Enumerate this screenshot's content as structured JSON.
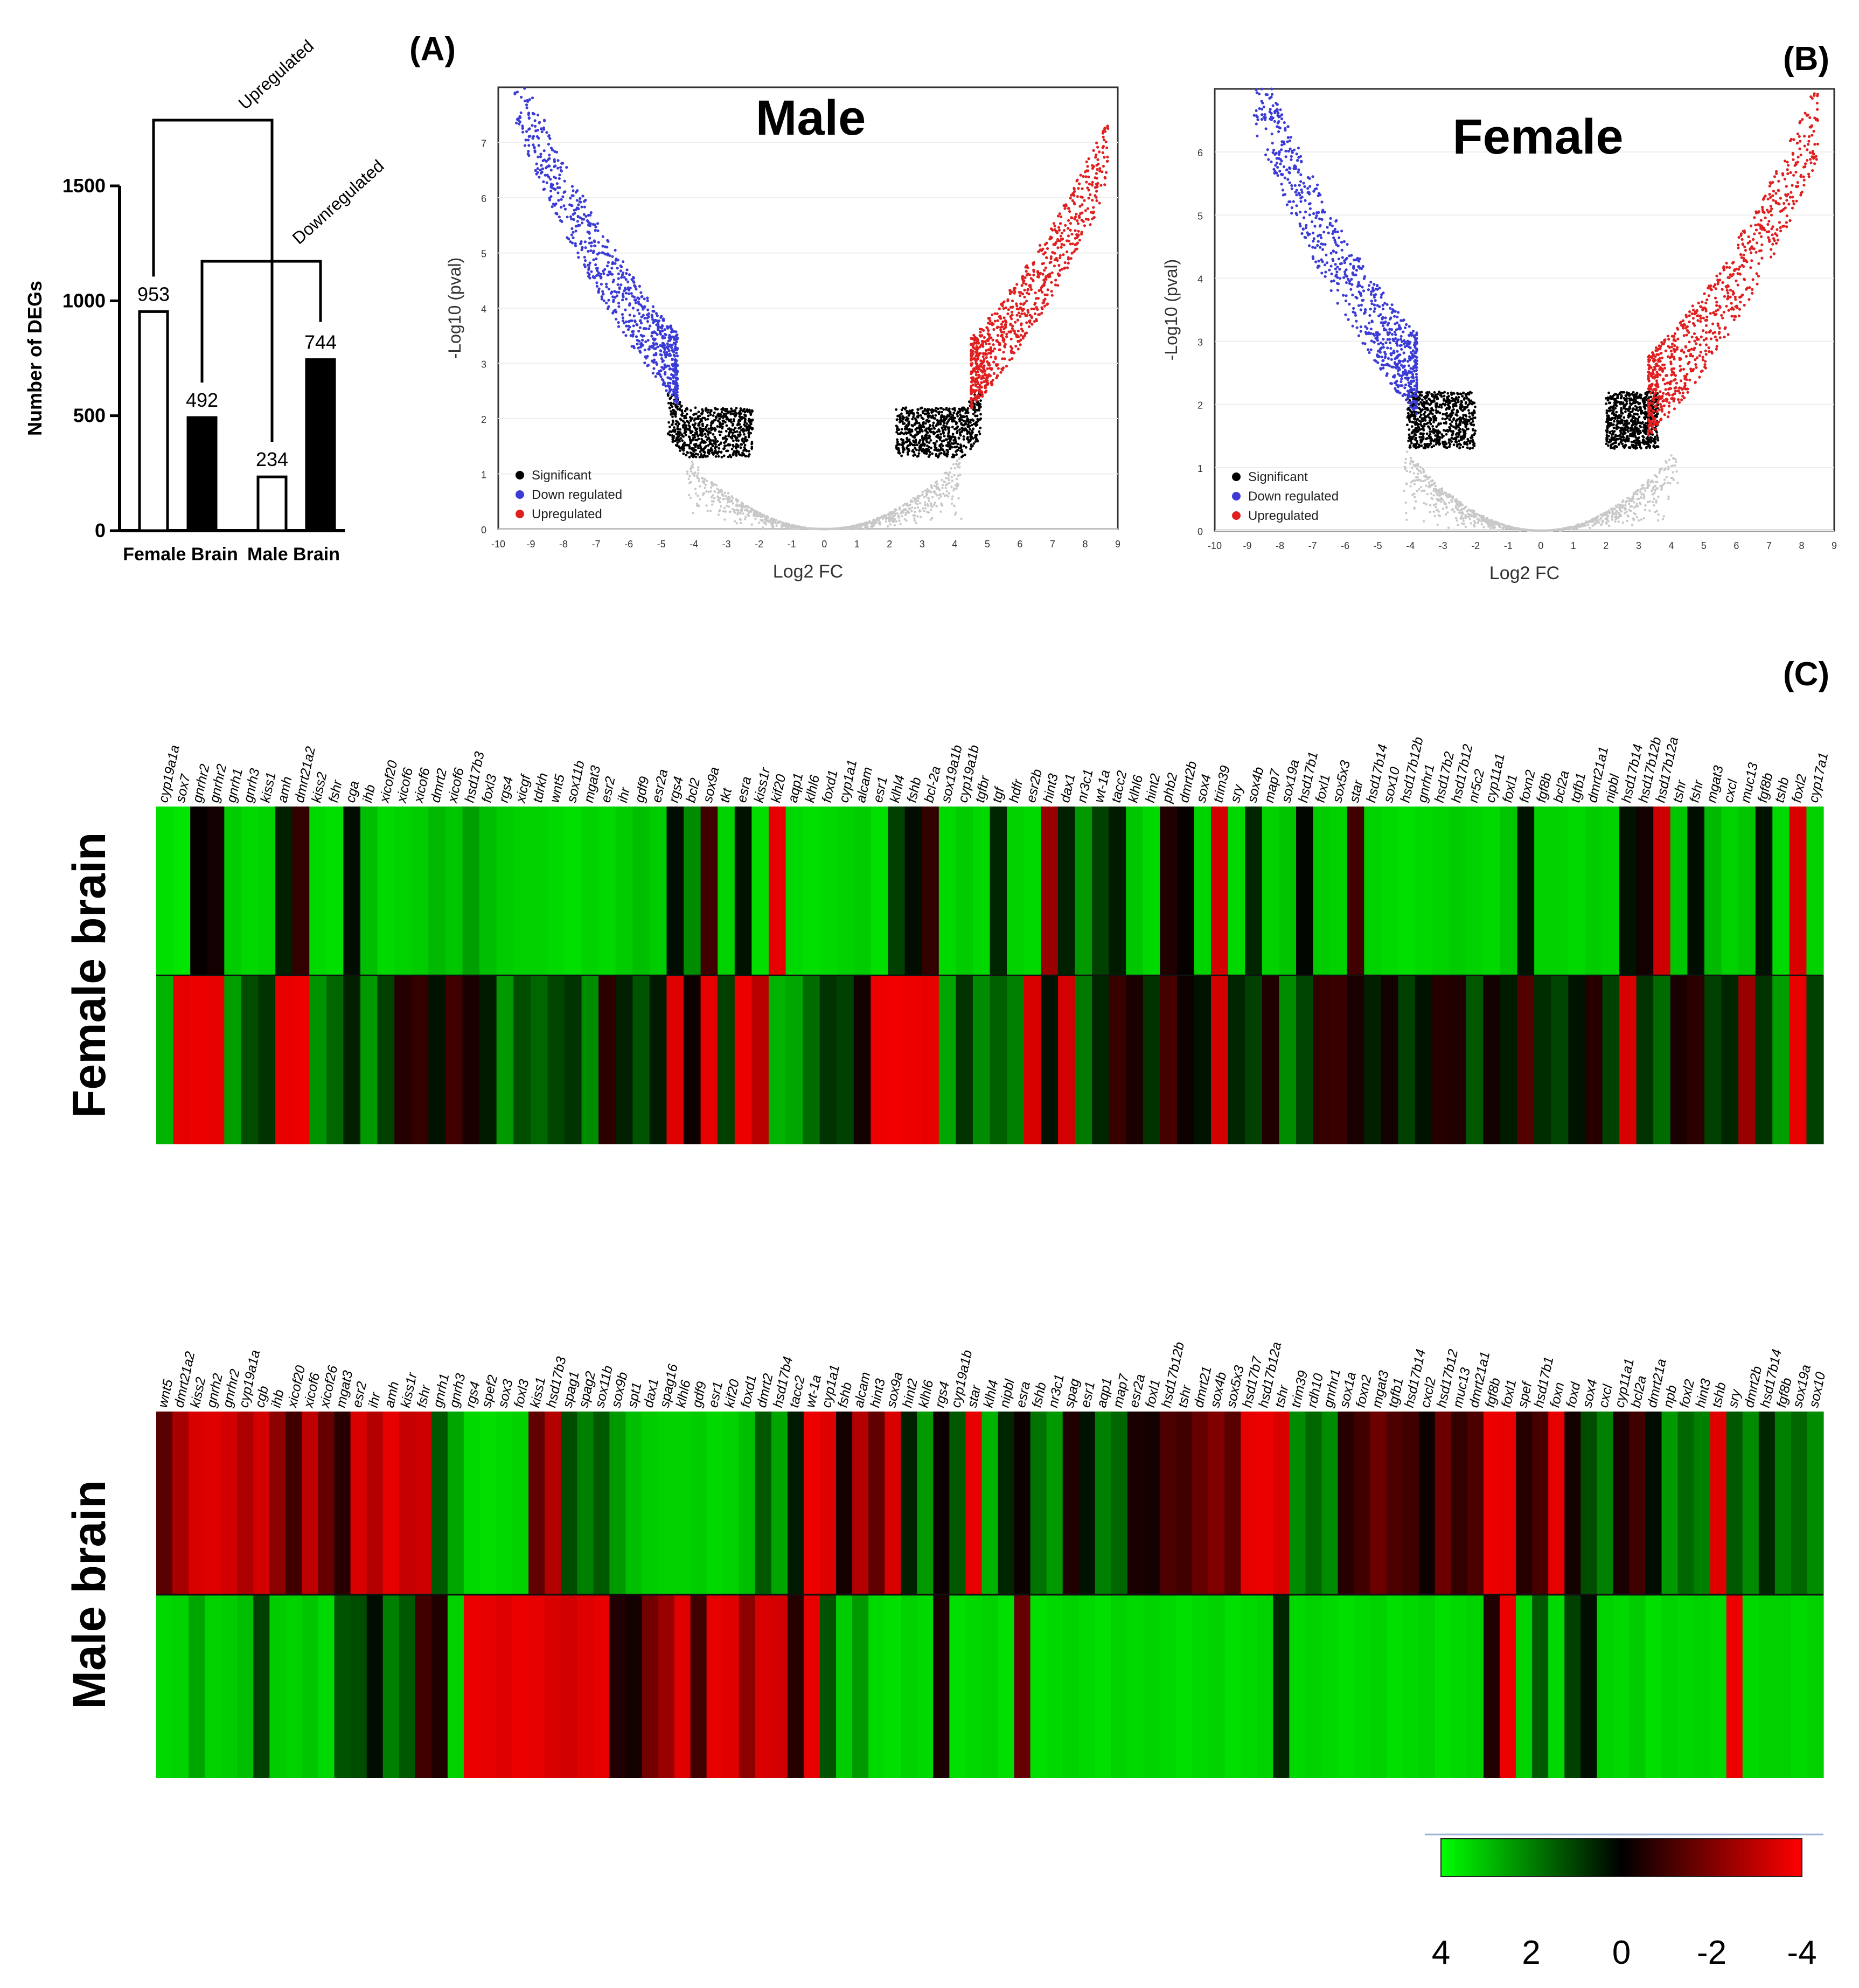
{
  "panel_labels": {
    "a": "(A)",
    "b": "(B)",
    "c": "(C)"
  },
  "chart_data": [
    {
      "type": "bar",
      "id": "deg-bar",
      "ylabel": "Number of DEGs",
      "ylim": [
        0,
        1500
      ],
      "yticks": [
        0,
        500,
        1000,
        1500
      ],
      "categories": [
        "Female Brain",
        "Male Brain"
      ],
      "bars": [
        {
          "group": "Female Brain",
          "kind": "Upregulated",
          "value": 953,
          "fill": "#ffffff"
        },
        {
          "group": "Female Brain",
          "kind": "Downregulated",
          "value": 492,
          "fill": "#000000"
        },
        {
          "group": "Male Brain",
          "kind": "Upregulated",
          "value": 234,
          "fill": "#ffffff"
        },
        {
          "group": "Male Brain",
          "kind": "Downregulated",
          "value": 744,
          "fill": "#000000"
        }
      ],
      "bracket_labels": [
        "Upregulated",
        "Downregulated"
      ]
    },
    {
      "type": "scatter",
      "id": "volcano-male",
      "title": "Male",
      "xlabel": "Log2 FC",
      "ylabel": "-Log10 (pval)",
      "xlim": [
        -10,
        9
      ],
      "ylim": [
        0,
        8
      ],
      "xticks": [
        -10,
        -9,
        -8,
        -7,
        -6,
        -5,
        -4,
        -3,
        -2,
        -1,
        0,
        1,
        2,
        3,
        4,
        5,
        6,
        7,
        8,
        9
      ],
      "yticks": [
        0,
        1,
        2,
        3,
        4,
        5,
        6,
        7
      ],
      "legend": [
        {
          "label": "Significant",
          "color": "#000000"
        },
        {
          "label": "Down regulated",
          "color": "#3b3bd6"
        },
        {
          "label": "Upregulated",
          "color": "#e02020"
        }
      ],
      "regions": {
        "down_x": [
          -9.5,
          -4.5
        ],
        "up_x": [
          4.5,
          8.7
        ],
        "sig_threshold_x": 2.2,
        "sig_threshold_y": 1.3
      }
    },
    {
      "type": "scatter",
      "id": "volcano-female",
      "title": "Female",
      "xlabel": "Log2 FC",
      "ylabel": "-Log10 (pval)",
      "xlim": [
        -10,
        9
      ],
      "ylim": [
        0,
        7
      ],
      "xticks": [
        -10,
        -9,
        -8,
        -7,
        -6,
        -5,
        -4,
        -3,
        -2,
        -1,
        0,
        1,
        2,
        3,
        4,
        5,
        6,
        7,
        8,
        9
      ],
      "yticks": [
        0,
        1,
        2,
        3,
        4,
        5,
        6
      ],
      "legend": [
        {
          "label": "Significant",
          "color": "#000000"
        },
        {
          "label": "Down regulated",
          "color": "#3b3bd6"
        },
        {
          "label": "Upregulated",
          "color": "#e02020"
        }
      ],
      "regions": {
        "down_x": [
          -8.8,
          -3.8
        ],
        "up_x": [
          3.3,
          8.5
        ],
        "sig_threshold_x": 2.0,
        "sig_threshold_y": 1.3
      }
    },
    {
      "type": "heatmap",
      "id": "heatmap-female",
      "row_label": "Female brain",
      "genes": [
        "cyp19a1a",
        "sox7",
        "gnrhr2",
        "gnrhr2",
        "gnrh1",
        "gnrh3",
        "kiss1",
        "amh",
        "dmrt21a2",
        "kiss2",
        "fshr",
        "cga",
        "ihb",
        "xicof20",
        "xicof6",
        "xicof6",
        "dmrt2",
        "xicof6",
        "hsd17b3",
        "foxl3",
        "rgs4",
        "xicgf",
        "tdrkh",
        "wnt5",
        "sox11b",
        "mgat3",
        "esr2",
        "ihr",
        "gdf9",
        "esr2a",
        "rgs4",
        "bcl2",
        "sox9a",
        "tkt",
        "esra",
        "kiss1r",
        "kif20",
        "aqp1",
        "klhl6",
        "foxd1",
        "cyp1a1",
        "alcam",
        "esr1",
        "klhl4",
        "fshb",
        "bcl-2a",
        "sox19a1b",
        "cyp19a1b",
        "tgfbr",
        "tgf",
        "hdfr",
        "esr2b",
        "hint3",
        "dax1",
        "nr3c1",
        "wt-1a",
        "tacc2",
        "klhl6",
        "hint2",
        "phb2",
        "dmrt2b",
        "sox4",
        "trim39",
        "sry",
        "sox4b",
        "map7",
        "sox19a",
        "hsd17b1",
        "foxl1",
        "sox5x3",
        "star",
        "hsd17b14",
        "sox10",
        "hsd17b12b",
        "gnrhr1",
        "hsd17b2",
        "hsd17b12",
        "nr5c2",
        "cyp11a1",
        "foxl1",
        "foxn2",
        "fgf8b",
        "bcl2a",
        "tgfb1",
        "dmrt21a1",
        "nipbl",
        "hsd17b14",
        "hsd17b12b",
        "hsd17b12a",
        "tshr",
        "fshr",
        "mgat3",
        "cxcl",
        "muc13",
        "fgf8b",
        "tshb",
        "foxl2",
        "cyp17a1"
      ],
      "top": [
        3.5,
        3.6,
        -0.1,
        -0.3,
        3.2,
        3.4,
        3.3,
        0.5,
        -0.8,
        3.4,
        3.5,
        0.2,
        3.0,
        3.4,
        3.3,
        3.2,
        2.9,
        3.1,
        2.5,
        3.0,
        3.2,
        3.3,
        3.3,
        3.4,
        3.5,
        3.3,
        3.4,
        3.2,
        3.0,
        3.2,
        0.2,
        2.2,
        -1.0,
        3.3,
        0.3,
        3.5,
        -3.6,
        3.4,
        3.5,
        3.4,
        3.3,
        3.2,
        3.5,
        1.0,
        0.2,
        -0.8,
        3.4,
        3.2,
        3.4,
        0.6,
        3.3,
        3.4,
        -2.4,
        0.5,
        2.4,
        1.0,
        0.4,
        3.1,
        3.4,
        -0.5,
        -0.1,
        3.3,
        -3.3,
        3.4,
        0.6,
        3.3,
        3.1,
        0.1,
        3.2,
        3.3,
        -1.0,
        3.3,
        3.4,
        3.5,
        3.4,
        3.3,
        3.2,
        3.3,
        3.4,
        3.1,
        0.3,
        3.3,
        3.3,
        3.4,
        3.2,
        3.3,
        0.3,
        -0.3,
        -3.2,
        3.1,
        0.2,
        2.9,
        3.3,
        3.1,
        0.3,
        3.4,
        -3.4,
        3.3,
        3.5,
        3.6
      ],
      "bottom": [
        2.8,
        -3.6,
        -3.7,
        -3.6,
        2.5,
        1.2,
        0.8,
        -3.6,
        -3.7,
        2.3,
        1.6,
        0.5,
        2.4,
        1.0,
        -0.6,
        -0.8,
        0.3,
        -1.0,
        -0.4,
        0.4,
        2.4,
        1.2,
        1.6,
        1.1,
        0.8,
        2.2,
        -0.7,
        0.5,
        1.3,
        0.4,
        -3.5,
        -0.2,
        -3.6,
        1.0,
        -3.7,
        -2.9,
        2.8,
        2.6,
        1.7,
        0.8,
        1.0,
        -0.3,
        -3.7,
        -3.8,
        -3.7,
        -3.6,
        2.6,
        0.8,
        2.2,
        1.5,
        2.0,
        -3.4,
        0.3,
        -3.3,
        1.9,
        0.6,
        -0.9,
        -0.4,
        0.8,
        -1.1,
        -0.2,
        0.3,
        -3.3,
        0.6,
        1.0,
        -0.5,
        2.2,
        1.1,
        -0.8,
        -0.9,
        -0.4,
        0.5,
        -0.3,
        1.0,
        0.3,
        -0.6,
        -0.5,
        1.4,
        -0.3,
        0.4,
        -1.3,
        0.7,
        1.1,
        0.3,
        -0.6,
        1.0,
        -3.4,
        0.8,
        1.7,
        -0.4,
        -0.7,
        1.0,
        0.6,
        -2.4,
        0.8,
        2.5,
        -3.6,
        1.0,
        0.6,
        0.2
      ]
    },
    {
      "type": "heatmap",
      "id": "heatmap-male",
      "row_label": "Male brain",
      "genes": [
        "wnt5",
        "dmrt21a2",
        "kiss2",
        "gnrh2",
        "gnrhr2",
        "cyp19a1a",
        "cgb",
        "ihb",
        "xicof20",
        "xicof6",
        "xicof26",
        "mgat3",
        "esr2",
        "ihr",
        "amh",
        "kiss1r",
        "fshr",
        "gnrh1",
        "gnrh3",
        "rgs4",
        "spef2",
        "sox3",
        "foxl3",
        "kiss1",
        "hsd17b3",
        "spag1",
        "spag2",
        "sox11b",
        "sox9b",
        "spt1",
        "dax1",
        "spag16",
        "klhl6",
        "gdf9",
        "esr1",
        "kif20",
        "foxd1",
        "dmrt2",
        "hsd17b4",
        "tacc2",
        "wt-1a",
        "cyp1a1",
        "fshb",
        "alcam",
        "hint3",
        "sox9a",
        "hint2",
        "klhl6",
        "rgs4",
        "cyp19a1b",
        "star",
        "klhl4",
        "nipbl",
        "esra",
        "fshb",
        "nr3c1",
        "spag",
        "esr1",
        "aqp1",
        "map7",
        "esr2a",
        "foxl1",
        "hsd17b12b",
        "tshr",
        "dmrt21",
        "sox4b",
        "sox5x3",
        "hsd17b7",
        "hsd17b12a",
        "tshr",
        "trim39",
        "rdh10",
        "gnrhr1",
        "sox1a",
        "foxn2",
        "mgat3",
        "tgfb1",
        "hsd17b14",
        "cxcl2",
        "hsd17b12",
        "muc13",
        "dmrt21a1",
        "fgf8b",
        "foxl1",
        "spef",
        "hsd17b1",
        "foxn",
        "foxd",
        "sox4",
        "cxcl",
        "cyp11a1",
        "bcl2a",
        "dmrt21a",
        "npb",
        "foxl2",
        "hint3",
        "tshb",
        "sry",
        "dmrt2b",
        "hsd17b14",
        "fgf8b",
        "sox19a",
        "sox10"
      ],
      "top": [
        -1.4,
        -2.6,
        -3.4,
        -3.5,
        -3.3,
        -2.7,
        -3.3,
        -2.2,
        -1.0,
        -3.0,
        -1.6,
        -0.6,
        -3.4,
        -2.8,
        -3.6,
        -3.1,
        -3.2,
        1.4,
        2.6,
        3.4,
        3.5,
        3.4,
        3.3,
        -1.5,
        -2.8,
        1.2,
        2.0,
        1.4,
        2.4,
        3.0,
        3.2,
        3.3,
        3.3,
        3.2,
        3.4,
        3.3,
        3.0,
        1.4,
        2.6,
        0.4,
        -3.7,
        -3.5,
        -0.3,
        -2.8,
        -1.5,
        -3.4,
        0.5,
        2.4,
        -0.2,
        1.4,
        -3.6,
        2.8,
        0.6,
        -0.2,
        1.8,
        2.4,
        -0.5,
        0.3,
        2.0,
        1.6,
        -0.4,
        -0.3,
        -1.2,
        -1.0,
        -1.6,
        -2.0,
        -1.4,
        -3.6,
        -3.7,
        -3.4,
        2.2,
        1.6,
        2.2,
        -0.6,
        -1.0,
        -1.7,
        -1.2,
        -1.0,
        -0.2,
        -1.7,
        -0.8,
        -1.2,
        -3.7,
        -3.6,
        -0.6,
        -1.1,
        -3.6,
        -0.3,
        1.2,
        2.0,
        -0.4,
        -1.0,
        0.2,
        2.4,
        1.6,
        2.0,
        -3.5,
        1.4,
        2.2,
        0.6,
        2.0,
        1.6,
        2.2,
        2.3
      ],
      "bottom": [
        3.4,
        3.3,
        2.6,
        3.3,
        3.2,
        3.0,
        1.0,
        3.2,
        3.3,
        3.1,
        3.4,
        1.3,
        1.2,
        0.2,
        2.0,
        1.4,
        -1.0,
        -0.5,
        3.3,
        -3.7,
        -3.6,
        -3.5,
        -3.7,
        -3.6,
        -3.4,
        -3.3,
        -3.5,
        -3.6,
        -0.5,
        -0.3,
        -1.8,
        -2.4,
        -3.5,
        -1.0,
        -3.6,
        -3.5,
        -2.2,
        -3.4,
        -3.3,
        -0.6,
        -3.6,
        1.3,
        3.2,
        2.4,
        3.4,
        3.5,
        3.3,
        3.4,
        -0.4,
        3.5,
        3.4,
        3.3,
        3.5,
        -1.6,
        3.5,
        3.4,
        3.3,
        3.4,
        3.5,
        3.3,
        3.4,
        3.3,
        3.4,
        3.5,
        3.4,
        3.3,
        3.5,
        3.4,
        3.3,
        0.6,
        3.4,
        3.3,
        3.4,
        3.5,
        3.4,
        3.3,
        3.5,
        3.4,
        3.3,
        3.5,
        3.4,
        3.3,
        -0.5,
        -3.7,
        3.3,
        1.4,
        3.4,
        1.0,
        0.2,
        3.3,
        3.4,
        3.2,
        3.5,
        3.3,
        3.4,
        3.3,
        3.4,
        -3.7,
        3.4,
        3.3,
        3.3,
        3.4,
        3.3,
        3.5
      ]
    },
    {
      "type": "colorbar",
      "id": "colorbar",
      "range": [
        4,
        -4
      ],
      "ticks": [
        "4",
        "2",
        "0",
        "-2",
        "-4"
      ],
      "colors": {
        "positive": "#00ff00",
        "zero": "#000000",
        "negative": "#ff0000"
      }
    }
  ]
}
